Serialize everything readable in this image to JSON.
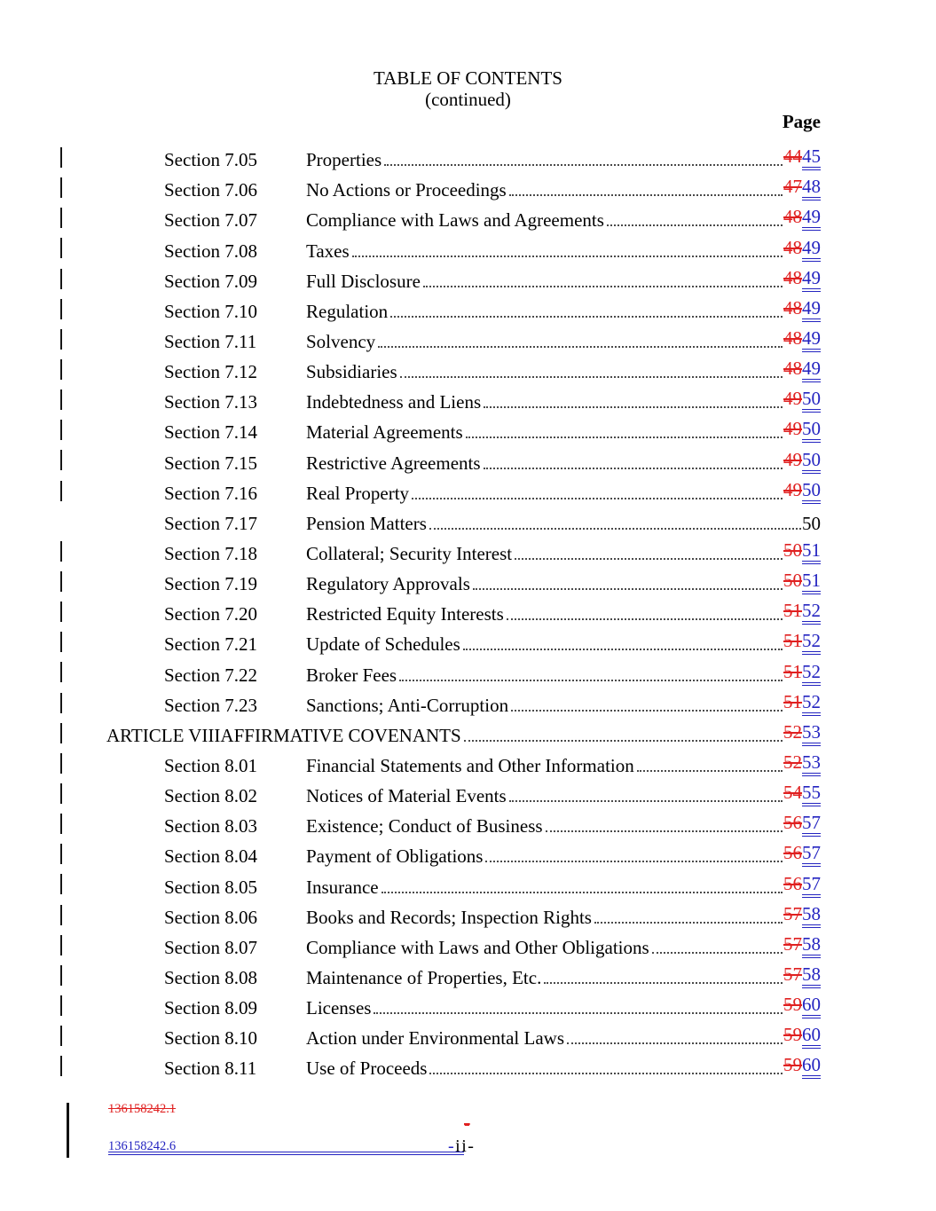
{
  "colors": {
    "deleted_red": "#e02020",
    "inserted_blue": "#2323c0"
  },
  "header": {
    "title": "TABLE OF CONTENTS",
    "subtitle": "(continued)",
    "page_column_label": "Page"
  },
  "toc": {
    "rows": [
      {
        "kind": "section",
        "label": "Section 7.05",
        "title": "Properties",
        "changed": true,
        "old_page": "44",
        "new_page": "45"
      },
      {
        "kind": "section",
        "label": "Section 7.06",
        "title": "No Actions or Proceedings",
        "changed": true,
        "old_page": "47",
        "new_page": "48"
      },
      {
        "kind": "section",
        "label": "Section 7.07",
        "title": "Compliance with Laws and Agreements",
        "changed": true,
        "old_page": "48",
        "new_page": "49"
      },
      {
        "kind": "section",
        "label": "Section 7.08",
        "title": "Taxes",
        "changed": true,
        "old_page": "48",
        "new_page": "49"
      },
      {
        "kind": "section",
        "label": "Section 7.09",
        "title": "Full Disclosure",
        "changed": true,
        "old_page": "48",
        "new_page": "49"
      },
      {
        "kind": "section",
        "label": "Section 7.10",
        "title": "Regulation",
        "changed": true,
        "old_page": "48",
        "new_page": "49"
      },
      {
        "kind": "section",
        "label": "Section 7.11",
        "title": "Solvency",
        "changed": true,
        "old_page": "48",
        "new_page": "49"
      },
      {
        "kind": "section",
        "label": "Section 7.12",
        "title": "Subsidiaries",
        "changed": true,
        "old_page": "48",
        "new_page": "49"
      },
      {
        "kind": "section",
        "label": "Section 7.13",
        "title": "Indebtedness and Liens",
        "changed": true,
        "old_page": "49",
        "new_page": "50"
      },
      {
        "kind": "section",
        "label": "Section 7.14",
        "title": "Material Agreements",
        "changed": true,
        "old_page": "49",
        "new_page": "50"
      },
      {
        "kind": "section",
        "label": "Section 7.15",
        "title": "Restrictive Agreements",
        "changed": true,
        "old_page": "49",
        "new_page": "50"
      },
      {
        "kind": "section",
        "label": "Section 7.16",
        "title": "Real Property",
        "changed": true,
        "old_page": "49",
        "new_page": "50"
      },
      {
        "kind": "section",
        "label": "Section 7.17",
        "title": "Pension Matters",
        "changed": false,
        "page": "50"
      },
      {
        "kind": "section",
        "label": "Section 7.18",
        "title": "Collateral; Security Interest",
        "changed": true,
        "old_page": "50",
        "new_page": "51"
      },
      {
        "kind": "section",
        "label": "Section 7.19",
        "title": "Regulatory Approvals",
        "changed": true,
        "old_page": "50",
        "new_page": "51"
      },
      {
        "kind": "section",
        "label": "Section 7.20",
        "title": "Restricted Equity Interests",
        "changed": true,
        "old_page": "51",
        "new_page": "52"
      },
      {
        "kind": "section",
        "label": "Section 7.21",
        "title": "Update of Schedules",
        "changed": true,
        "old_page": "51",
        "new_page": "52"
      },
      {
        "kind": "section",
        "label": "Section 7.22",
        "title": "Broker Fees",
        "changed": true,
        "old_page": "51",
        "new_page": "52"
      },
      {
        "kind": "section",
        "label": "Section 7.23",
        "title": "Sanctions; Anti-Corruption",
        "changed": true,
        "old_page": "51",
        "new_page": "52"
      },
      {
        "kind": "article",
        "label": "ARTICLE VIII",
        "title": "AFFIRMATIVE COVENANTS",
        "changed": true,
        "old_page": "52",
        "new_page": "53"
      },
      {
        "kind": "section",
        "label": "Section 8.01",
        "title": "Financial Statements and Other Information",
        "changed": true,
        "old_page": "52",
        "new_page": "53"
      },
      {
        "kind": "section",
        "label": "Section 8.02",
        "title": "Notices of Material Events",
        "changed": true,
        "old_page": "54",
        "new_page": "55"
      },
      {
        "kind": "section",
        "label": "Section 8.03",
        "title": "Existence; Conduct of Business",
        "changed": true,
        "old_page": "56",
        "new_page": "57"
      },
      {
        "kind": "section",
        "label": "Section 8.04",
        "title": "Payment of Obligations",
        "changed": true,
        "old_page": "56",
        "new_page": "57"
      },
      {
        "kind": "section",
        "label": "Section 8.05",
        "title": "Insurance",
        "changed": true,
        "old_page": "56",
        "new_page": "57"
      },
      {
        "kind": "section",
        "label": "Section 8.06",
        "title": "Books and Records; Inspection Rights",
        "changed": true,
        "old_page": "57",
        "new_page": "58"
      },
      {
        "kind": "section",
        "label": "Section 8.07",
        "title": "Compliance with Laws and Other Obligations",
        "changed": true,
        "old_page": "57",
        "new_page": "58"
      },
      {
        "kind": "section",
        "label": "Section 8.08",
        "title": "Maintenance of Properties, Etc.",
        "changed": true,
        "old_page": "57",
        "new_page": "58"
      },
      {
        "kind": "section",
        "label": "Section 8.09",
        "title": "Licenses",
        "changed": true,
        "old_page": "59",
        "new_page": "60"
      },
      {
        "kind": "section",
        "label": "Section 8.10",
        "title": "Action under Environmental Laws",
        "changed": true,
        "old_page": "59",
        "new_page": "60"
      },
      {
        "kind": "section",
        "label": "Section 8.11",
        "title": "Use of Proceeds",
        "changed": true,
        "old_page": "59",
        "new_page": "60"
      }
    ]
  },
  "footer": {
    "deleted_doc_number": "136158242.1",
    "inserted_doc_number": "136158242.6",
    "deleted_hyphen": "-",
    "page_marker_inserted_hyphen": "-",
    "page_marker_text": "ii-"
  }
}
